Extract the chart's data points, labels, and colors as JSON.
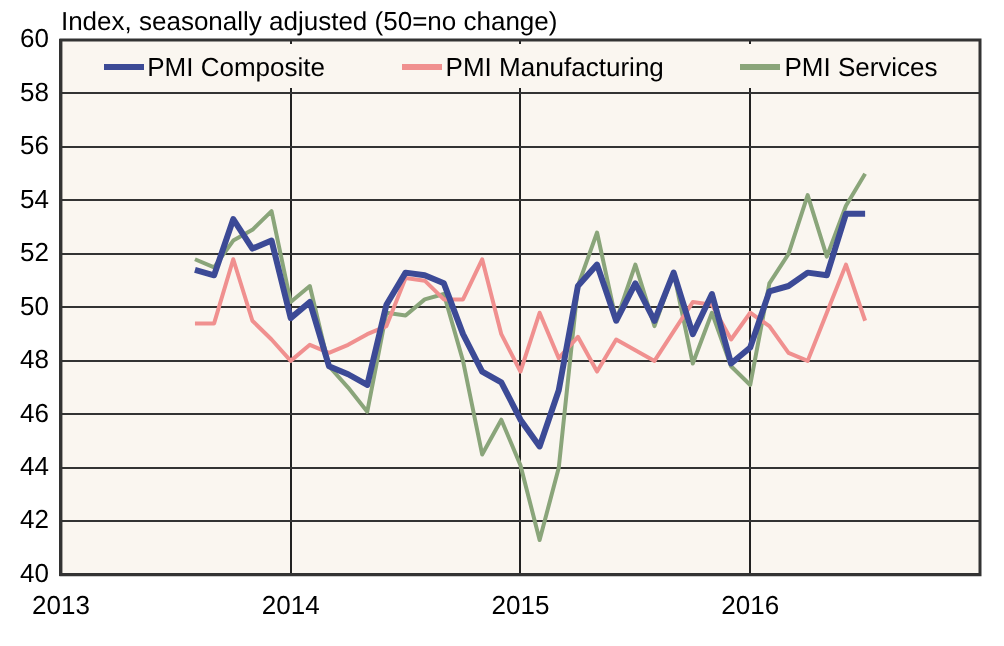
{
  "chart_data": {
    "type": "line",
    "ylabel": "Index, seasonally adjusted (50=no change)",
    "x": [
      "2013-08",
      "2013-09",
      "2013-10",
      "2013-11",
      "2013-12",
      "2014-01",
      "2014-02",
      "2014-03",
      "2014-04",
      "2014-05",
      "2014-06",
      "2014-07",
      "2014-08",
      "2014-09",
      "2014-10",
      "2014-11",
      "2014-12",
      "2015-01",
      "2015-02",
      "2015-03",
      "2015-04",
      "2015-05",
      "2015-06",
      "2015-07",
      "2015-08",
      "2015-09",
      "2015-10",
      "2015-11",
      "2015-12",
      "2016-01",
      "2016-02",
      "2016-03",
      "2016-04",
      "2016-05",
      "2016-06",
      "2016-07"
    ],
    "series": [
      {
        "name": "PMI Composite",
        "color": "#3c4a96",
        "values": [
          51.4,
          51.2,
          53.3,
          52.2,
          52.5,
          49.6,
          50.2,
          47.8,
          47.5,
          47.1,
          50.1,
          51.3,
          51.2,
          50.9,
          49.0,
          47.6,
          47.2,
          45.8,
          44.8,
          46.9,
          50.8,
          51.6,
          49.5,
          50.9,
          49.5,
          51.3,
          49.0,
          50.5,
          47.9,
          48.5,
          50.6,
          50.8,
          51.3,
          51.2,
          53.5,
          53.5
        ]
      },
      {
        "name": "PMI Manufacturing",
        "color": "#f0908f",
        "values": [
          49.4,
          49.4,
          51.8,
          49.5,
          48.8,
          48.0,
          48.6,
          48.3,
          48.6,
          49.0,
          49.3,
          51.1,
          51.0,
          50.3,
          50.3,
          51.8,
          49.0,
          47.6,
          49.8,
          48.1,
          48.9,
          47.6,
          48.8,
          48.4,
          48.0,
          49.1,
          50.2,
          50.1,
          48.8,
          49.8,
          49.3,
          48.3,
          48.0,
          49.8,
          51.6,
          49.5
        ]
      },
      {
        "name": "PMI Services",
        "color": "#8aa57a",
        "values": [
          51.8,
          51.5,
          52.5,
          52.9,
          53.6,
          50.2,
          50.8,
          47.8,
          47.0,
          46.1,
          49.8,
          49.7,
          50.3,
          50.5,
          48.0,
          44.5,
          45.8,
          44.1,
          41.3,
          44.0,
          50.8,
          52.8,
          49.5,
          51.6,
          49.3,
          51.3,
          47.9,
          49.8,
          47.8,
          47.1,
          50.9,
          52.0,
          54.2,
          51.9,
          53.8,
          55.0
        ]
      }
    ],
    "xlim": [
      "2013-01",
      "2017-01"
    ],
    "xticks": [
      "2013",
      "2014",
      "2015",
      "2016"
    ],
    "ylim": [
      40,
      60
    ],
    "yticks": [
      40,
      42,
      44,
      46,
      48,
      50,
      52,
      54,
      56,
      58,
      60
    ],
    "grid": true,
    "legend": "top",
    "marker": "none",
    "line_style": "solid"
  }
}
